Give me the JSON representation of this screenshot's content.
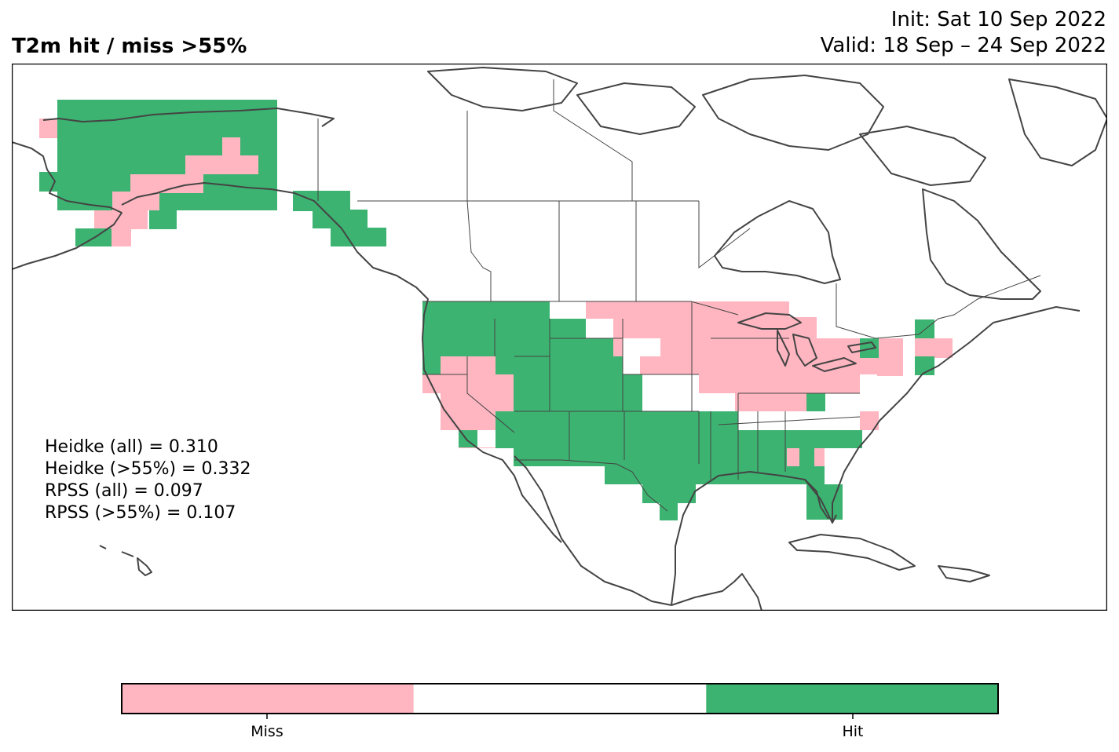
{
  "header": {
    "title": "T2m hit / miss  >55%",
    "init": "Init: Sat 10 Sep 2022",
    "valid": "Valid: 18 Sep – 24 Sep 2022"
  },
  "scores": [
    "Heidke (all) = 0.310",
    "Heidke (>55%) = 0.332",
    "RPSS (all) = 0.097",
    "RPSS (>55%) = 0.107"
  ],
  "legend": {
    "miss_label": "Miss",
    "hit_label": "Hit",
    "miss_color": "#ffb6c1",
    "neutral_color": "#ffffff",
    "hit_color": "#3cb371"
  }
}
